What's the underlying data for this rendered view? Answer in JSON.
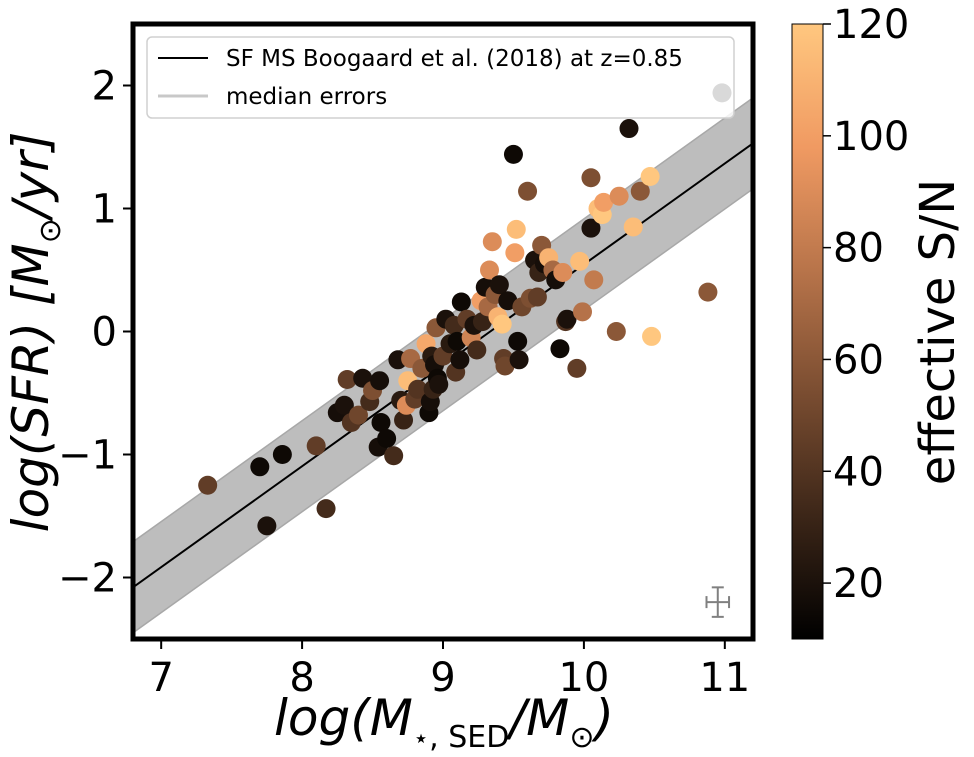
{
  "chart_data": {
    "type": "scatter",
    "xlabel": {
      "pre": "log(M",
      "sub_star": "⋆",
      "sub_text": ", SED",
      "post": "/M",
      "sun_sub": "⊙",
      "close": ")"
    },
    "ylabel": {
      "pre": "log(SFR) [M",
      "sun_sub": "⊙",
      "post": "/yr]"
    },
    "xlim": [
      6.8,
      11.2
    ],
    "ylim": [
      -2.5,
      2.5
    ],
    "x_ticks": [
      7,
      8,
      9,
      10,
      11
    ],
    "y_ticks": [
      -2,
      -1,
      0,
      1,
      2
    ],
    "y_tick_labels": [
      "−2",
      "−1",
      "0",
      "1",
      "2"
    ],
    "colorbar": {
      "label": "effective S/N",
      "range": [
        10,
        120
      ],
      "ticks": [
        20,
        40,
        60,
        80,
        100,
        120
      ],
      "colormap": "copper",
      "gradient": [
        "#000000",
        "#3c2618",
        "#7a4d31",
        "#b8744a",
        "#f09a62",
        "#ffc77f"
      ]
    },
    "main_sequence": {
      "name": "SF MS Boogaard et al. (2018) at z=0.85",
      "color": "#000000",
      "line": [
        [
          6.8,
          -2.08
        ],
        [
          11.2,
          1.53
        ]
      ],
      "band_halfwidth": 0.37,
      "band_color": "#bdbdbd"
    },
    "median_errors": {
      "name": "median errors",
      "x": 10.95,
      "y": -2.2,
      "xerr": 0.08,
      "yerr": 0.12,
      "color": "#c8c8c8",
      "marker_color": "#808080"
    },
    "legend_position": "upper-left",
    "points": [
      {
        "x": 7.33,
        "y": -1.25,
        "sn": 45
      },
      {
        "x": 7.7,
        "y": -1.1,
        "sn": 15
      },
      {
        "x": 7.75,
        "y": -1.58,
        "sn": 20
      },
      {
        "x": 7.86,
        "y": -1.0,
        "sn": 15
      },
      {
        "x": 8.1,
        "y": -0.93,
        "sn": 45
      },
      {
        "x": 8.17,
        "y": -1.44,
        "sn": 35
      },
      {
        "x": 8.25,
        "y": -0.66,
        "sn": 18
      },
      {
        "x": 8.3,
        "y": -0.6,
        "sn": 20
      },
      {
        "x": 8.32,
        "y": -0.39,
        "sn": 45
      },
      {
        "x": 8.35,
        "y": -0.74,
        "sn": 40
      },
      {
        "x": 8.4,
        "y": -0.68,
        "sn": 50
      },
      {
        "x": 8.43,
        "y": -0.38,
        "sn": 20
      },
      {
        "x": 8.48,
        "y": -0.57,
        "sn": 35
      },
      {
        "x": 8.5,
        "y": -0.48,
        "sn": 55
      },
      {
        "x": 8.55,
        "y": -0.4,
        "sn": 18
      },
      {
        "x": 8.56,
        "y": -0.74,
        "sn": 15
      },
      {
        "x": 8.54,
        "y": -0.94,
        "sn": 18
      },
      {
        "x": 8.6,
        "y": -0.87,
        "sn": 15
      },
      {
        "x": 8.65,
        "y": -1.01,
        "sn": 35
      },
      {
        "x": 8.68,
        "y": -0.23,
        "sn": 20
      },
      {
        "x": 8.7,
        "y": -0.56,
        "sn": 25
      },
      {
        "x": 8.72,
        "y": -0.72,
        "sn": 30
      },
      {
        "x": 8.74,
        "y": -0.6,
        "sn": 90
      },
      {
        "x": 8.75,
        "y": -0.4,
        "sn": 115
      },
      {
        "x": 8.77,
        "y": -0.22,
        "sn": 70
      },
      {
        "x": 8.8,
        "y": -0.55,
        "sn": 45
      },
      {
        "x": 8.82,
        "y": -0.47,
        "sn": 40
      },
      {
        "x": 8.85,
        "y": -0.3,
        "sn": 60
      },
      {
        "x": 8.88,
        "y": -0.1,
        "sn": 105
      },
      {
        "x": 8.9,
        "y": -0.66,
        "sn": 15
      },
      {
        "x": 8.91,
        "y": -0.57,
        "sn": 18
      },
      {
        "x": 8.92,
        "y": -0.2,
        "sn": 25
      },
      {
        "x": 8.93,
        "y": -0.47,
        "sn": 30
      },
      {
        "x": 8.94,
        "y": -0.27,
        "sn": 18
      },
      {
        "x": 8.95,
        "y": 0.03,
        "sn": 60
      },
      {
        "x": 8.96,
        "y": -0.38,
        "sn": 15
      },
      {
        "x": 8.97,
        "y": -0.43,
        "sn": 20
      },
      {
        "x": 9.0,
        "y": -0.2,
        "sn": 45
      },
      {
        "x": 9.02,
        "y": 0.1,
        "sn": 20
      },
      {
        "x": 9.05,
        "y": -0.1,
        "sn": 25
      },
      {
        "x": 9.08,
        "y": 0.05,
        "sn": 35
      },
      {
        "x": 9.09,
        "y": -0.33,
        "sn": 40
      },
      {
        "x": 9.1,
        "y": -0.08,
        "sn": 15
      },
      {
        "x": 9.12,
        "y": -0.23,
        "sn": 18
      },
      {
        "x": 9.13,
        "y": 0.24,
        "sn": 15
      },
      {
        "x": 9.17,
        "y": 0.1,
        "sn": 45
      },
      {
        "x": 9.2,
        "y": -0.05,
        "sn": 85
      },
      {
        "x": 9.22,
        "y": 0.05,
        "sn": 20
      },
      {
        "x": 9.24,
        "y": -0.15,
        "sn": 35
      },
      {
        "x": 9.27,
        "y": 0.25,
        "sn": 100
      },
      {
        "x": 9.28,
        "y": 0.08,
        "sn": 30
      },
      {
        "x": 9.3,
        "y": 0.36,
        "sn": 18
      },
      {
        "x": 9.32,
        "y": 0.2,
        "sn": 70
      },
      {
        "x": 9.33,
        "y": 0.5,
        "sn": 90
      },
      {
        "x": 9.35,
        "y": 0.73,
        "sn": 90
      },
      {
        "x": 9.37,
        "y": 0.3,
        "sn": 60
      },
      {
        "x": 9.39,
        "y": 0.12,
        "sn": 110
      },
      {
        "x": 9.4,
        "y": 0.38,
        "sn": 20
      },
      {
        "x": 9.42,
        "y": 0.06,
        "sn": 120
      },
      {
        "x": 9.43,
        "y": -0.22,
        "sn": 45
      },
      {
        "x": 9.44,
        "y": -0.28,
        "sn": 50
      },
      {
        "x": 9.46,
        "y": 0.25,
        "sn": 18
      },
      {
        "x": 9.5,
        "y": 1.44,
        "sn": 15
      },
      {
        "x": 9.51,
        "y": 0.64,
        "sn": 100
      },
      {
        "x": 9.52,
        "y": 0.83,
        "sn": 115
      },
      {
        "x": 9.53,
        "y": -0.08,
        "sn": 15
      },
      {
        "x": 9.54,
        "y": -0.23,
        "sn": 20
      },
      {
        "x": 9.56,
        "y": 0.2,
        "sn": 50
      },
      {
        "x": 9.6,
        "y": 1.14,
        "sn": 55
      },
      {
        "x": 9.62,
        "y": 0.27,
        "sn": 55
      },
      {
        "x": 9.65,
        "y": 0.58,
        "sn": 20
      },
      {
        "x": 9.67,
        "y": 0.28,
        "sn": 45
      },
      {
        "x": 9.68,
        "y": 0.48,
        "sn": 30
      },
      {
        "x": 9.7,
        "y": 0.7,
        "sn": 60
      },
      {
        "x": 9.72,
        "y": 0.55,
        "sn": 18
      },
      {
        "x": 9.75,
        "y": 0.6,
        "sn": 110
      },
      {
        "x": 9.78,
        "y": 0.5,
        "sn": 70
      },
      {
        "x": 9.8,
        "y": 0.42,
        "sn": 18
      },
      {
        "x": 9.83,
        "y": -0.14,
        "sn": 15
      },
      {
        "x": 9.85,
        "y": 0.48,
        "sn": 90
      },
      {
        "x": 9.87,
        "y": 0.08,
        "sn": 40
      },
      {
        "x": 9.88,
        "y": 0.1,
        "sn": 20
      },
      {
        "x": 9.95,
        "y": -0.3,
        "sn": 45
      },
      {
        "x": 9.97,
        "y": 0.57,
        "sn": 115
      },
      {
        "x": 9.99,
        "y": 0.16,
        "sn": 75
      },
      {
        "x": 10.05,
        "y": 1.25,
        "sn": 55
      },
      {
        "x": 10.05,
        "y": 0.84,
        "sn": 20
      },
      {
        "x": 10.07,
        "y": 0.42,
        "sn": 80
      },
      {
        "x": 10.1,
        "y": 1.0,
        "sn": 115
      },
      {
        "x": 10.13,
        "y": 0.95,
        "sn": 120
      },
      {
        "x": 10.14,
        "y": 1.05,
        "sn": 100
      },
      {
        "x": 10.23,
        "y": 0.0,
        "sn": 60
      },
      {
        "x": 10.25,
        "y": 1.1,
        "sn": 90
      },
      {
        "x": 10.32,
        "y": 1.65,
        "sn": 20
      },
      {
        "x": 10.35,
        "y": 0.85,
        "sn": 115
      },
      {
        "x": 10.4,
        "y": 1.14,
        "sn": 60
      },
      {
        "x": 10.47,
        "y": 1.26,
        "sn": 120
      },
      {
        "x": 10.48,
        "y": -0.04,
        "sn": 120
      },
      {
        "x": 10.88,
        "y": 0.32,
        "sn": 60
      },
      {
        "x": 10.98,
        "y": 1.94,
        "sn": 10
      }
    ]
  }
}
